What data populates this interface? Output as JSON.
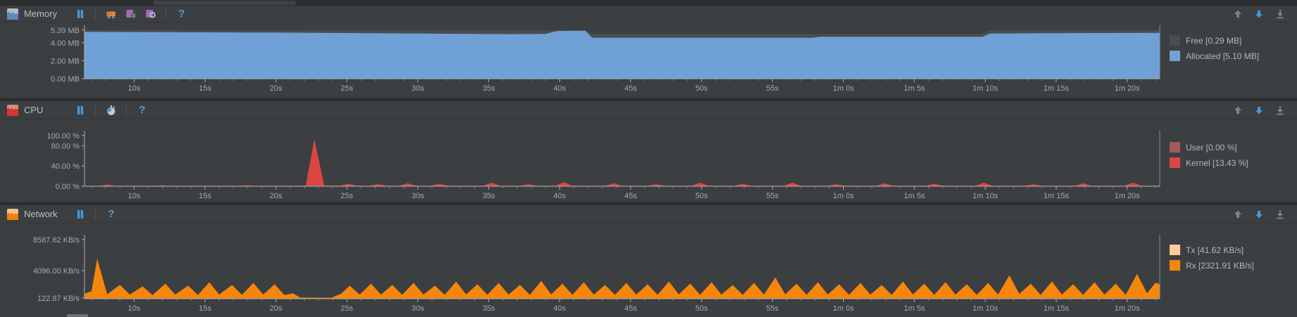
{
  "panels": [
    {
      "title": "Memory",
      "icons": {
        "panel": "memory-chart-icon",
        "toolbar": [
          "pause-icon",
          "gc-icon",
          "heap-dump-icon",
          "allocation-tracker-icon",
          "help-icon"
        ],
        "controls": [
          "move-up-icon",
          "move-down-icon",
          "minimize-icon"
        ]
      },
      "legend": [
        {
          "label": "Free [0.29 MB]",
          "color": "#4A4D4F"
        },
        {
          "label": "Allocated [5.10 MB]",
          "color": "#6FA1D6"
        }
      ]
    },
    {
      "title": "CPU",
      "icons": {
        "panel": "cpu-chart-icon",
        "toolbar": [
          "pause-icon",
          "method-trace-icon",
          "help-icon"
        ],
        "controls": [
          "move-up-icon",
          "move-down-icon",
          "minimize-icon"
        ]
      },
      "legend": [
        {
          "label": "User [0.00 %]",
          "color": "#A05A5A"
        },
        {
          "label": "Kernel [13.43 %]",
          "color": "#DC4642"
        }
      ]
    },
    {
      "title": "Network",
      "icons": {
        "panel": "network-chart-icon",
        "toolbar": [
          "pause-icon",
          "help-icon"
        ],
        "controls": [
          "move-up-icon",
          "move-down-icon",
          "minimize-icon"
        ]
      },
      "legend": [
        {
          "label": "Tx [41.62 KB/s]",
          "color": "#FFCC99"
        },
        {
          "label": "Rx [2321.91 KB/s]",
          "color": "#F6860B"
        }
      ]
    }
  ],
  "time_axis": {
    "unit": "seconds",
    "minor_tick_step": 1,
    "labels": [
      {
        "t": 10,
        "label": "10s"
      },
      {
        "t": 15,
        "label": "15s"
      },
      {
        "t": 20,
        "label": "20s"
      },
      {
        "t": 25,
        "label": "25s"
      },
      {
        "t": 30,
        "label": "30s"
      },
      {
        "t": 35,
        "label": "35s"
      },
      {
        "t": 40,
        "label": "40s"
      },
      {
        "t": 45,
        "label": "45s"
      },
      {
        "t": 50,
        "label": "50s"
      },
      {
        "t": 55,
        "label": "55s"
      },
      {
        "t": 60,
        "label": "1m 0s"
      },
      {
        "t": 65,
        "label": "1m 5s"
      },
      {
        "t": 70,
        "label": "1m 10s"
      },
      {
        "t": 75,
        "label": "1m 15s"
      },
      {
        "t": 80,
        "label": "1m 20s"
      }
    ]
  },
  "chart_data": [
    {
      "type": "area",
      "title": "Memory",
      "y_unit": "MB",
      "x_range": [
        6.5,
        82.3
      ],
      "y_plot_max": 5.62,
      "y_ticks": [
        {
          "v": 5.39,
          "label": "5.39 MB"
        },
        {
          "v": 4.0,
          "label": "4.00 MB"
        },
        {
          "v": 2.0,
          "label": "2.00 MB"
        },
        {
          "v": 0.0,
          "label": "0.00 MB"
        }
      ],
      "series": [
        {
          "name": "total (allocated + free)",
          "color": "#4A4D4F",
          "points": [
            [
              6.5,
              5.39
            ],
            [
              41.8,
              5.39
            ],
            [
              42.3,
              4.97
            ],
            [
              69.8,
              4.97
            ],
            [
              70.3,
              5.39
            ],
            [
              82.3,
              5.39
            ]
          ]
        },
        {
          "name": "allocated",
          "color": "#6FA1D6",
          "points": [
            [
              6.5,
              5.2
            ],
            [
              20,
              5.12
            ],
            [
              30,
              5.02
            ],
            [
              36.5,
              4.95
            ],
            [
              39,
              4.97
            ],
            [
              39.8,
              5.3
            ],
            [
              41.8,
              5.32
            ],
            [
              42.3,
              4.55
            ],
            [
              57.8,
              4.55
            ],
            [
              58.3,
              4.65
            ],
            [
              69.8,
              4.65
            ],
            [
              70.3,
              5.0
            ],
            [
              74,
              5.06
            ],
            [
              82.3,
              5.1
            ]
          ]
        }
      ]
    },
    {
      "type": "area",
      "title": "CPU",
      "y_unit": "%",
      "x_range": [
        6.5,
        82.3
      ],
      "y_plot_max": 104,
      "y_ticks": [
        {
          "v": 100,
          "label": "100.00 %"
        },
        {
          "v": 80,
          "label": "80.00 %"
        },
        {
          "v": 40,
          "label": "40.00 %"
        },
        {
          "v": 0,
          "label": "0.00 %"
        }
      ],
      "series": [
        {
          "name": "user",
          "color": "#A05A5A",
          "points": [
            [
              6.5,
              0
            ],
            [
              82.3,
              0
            ]
          ]
        },
        {
          "name": "kernel",
          "color": "#DC4642",
          "points": [
            [
              6.5,
              1
            ],
            [
              7.6,
              1
            ],
            [
              8.1,
              3.5
            ],
            [
              8.7,
              1
            ],
            [
              11.5,
              1
            ],
            [
              12,
              2
            ],
            [
              12.5,
              1
            ],
            [
              15,
              1
            ],
            [
              17.5,
              1
            ],
            [
              18,
              2
            ],
            [
              18.5,
              1
            ],
            [
              21.5,
              1
            ],
            [
              22.1,
              1.5
            ],
            [
              22.7,
              93
            ],
            [
              23.4,
              1.5
            ],
            [
              24.5,
              1
            ],
            [
              25.1,
              5
            ],
            [
              25.7,
              1
            ],
            [
              26.6,
              1
            ],
            [
              27.2,
              4
            ],
            [
              27.8,
              1
            ],
            [
              28.7,
              1
            ],
            [
              29.3,
              6
            ],
            [
              29.9,
              1
            ],
            [
              30.9,
              1
            ],
            [
              31.5,
              5
            ],
            [
              32.1,
              1
            ],
            [
              34.6,
              1
            ],
            [
              35.2,
              7
            ],
            [
              35.8,
              1
            ],
            [
              37.2,
              1
            ],
            [
              37.8,
              4
            ],
            [
              38.4,
              1
            ],
            [
              39.7,
              1
            ],
            [
              40.3,
              8
            ],
            [
              40.9,
              1
            ],
            [
              43.2,
              1
            ],
            [
              43.8,
              6
            ],
            [
              44.4,
              1
            ],
            [
              46.2,
              1
            ],
            [
              46.8,
              4
            ],
            [
              47.4,
              1
            ],
            [
              49.3,
              1
            ],
            [
              49.9,
              7
            ],
            [
              50.5,
              1
            ],
            [
              52.3,
              1
            ],
            [
              52.9,
              5
            ],
            [
              53.5,
              1
            ],
            [
              55.8,
              1
            ],
            [
              56.4,
              7
            ],
            [
              57,
              1
            ],
            [
              58.9,
              1
            ],
            [
              59.5,
              4
            ],
            [
              60.1,
              1
            ],
            [
              62.3,
              1
            ],
            [
              62.9,
              6
            ],
            [
              63.5,
              1
            ],
            [
              65.8,
              1
            ],
            [
              66.4,
              5
            ],
            [
              67,
              1
            ],
            [
              69.3,
              1
            ],
            [
              69.9,
              7
            ],
            [
              70.5,
              1
            ],
            [
              72.8,
              1
            ],
            [
              73.4,
              4
            ],
            [
              74,
              1
            ],
            [
              76.3,
              1
            ],
            [
              76.9,
              6
            ],
            [
              77.5,
              1
            ],
            [
              79.8,
              1
            ],
            [
              80.4,
              7
            ],
            [
              81,
              1
            ],
            [
              82.3,
              1.2
            ]
          ]
        }
      ]
    },
    {
      "type": "area",
      "title": "Network",
      "y_unit": "KB/s",
      "x_range": [
        6.5,
        82.3
      ],
      "y_plot_max": 8890,
      "y_ticks": [
        {
          "v": 8587.62,
          "label": "8587.62 KB/s"
        },
        {
          "v": 4096.0,
          "label": "4096.00 KB/s"
        },
        {
          "v": 122.87,
          "label": "122.87 KB/s"
        }
      ],
      "series": [
        {
          "name": "tx",
          "color": "#FFCC99",
          "points": [
            [
              6.5,
              60
            ],
            [
              82.3,
              60
            ]
          ]
        },
        {
          "name": "rx",
          "color": "#F6860B",
          "points": [
            [
              6.5,
              700
            ],
            [
              7.0,
              1100
            ],
            [
              7.4,
              5800
            ],
            [
              8.1,
              650
            ],
            [
              9.0,
              2000
            ],
            [
              9.7,
              600
            ],
            [
              10.6,
              1800
            ],
            [
              11.3,
              520
            ],
            [
              12.2,
              2200
            ],
            [
              12.9,
              600
            ],
            [
              13.8,
              1900
            ],
            [
              14.5,
              540
            ],
            [
              15.3,
              2400
            ],
            [
              16.0,
              600
            ],
            [
              16.9,
              2000
            ],
            [
              17.6,
              560
            ],
            [
              18.4,
              2300
            ],
            [
              19.1,
              600
            ],
            [
              19.9,
              2100
            ],
            [
              20.6,
              520
            ],
            [
              21.2,
              800
            ],
            [
              21.7,
              160
            ],
            [
              23.9,
              140
            ],
            [
              24.6,
              750
            ],
            [
              25.2,
              1900
            ],
            [
              25.9,
              580
            ],
            [
              26.7,
              2200
            ],
            [
              27.4,
              600
            ],
            [
              28.2,
              2000
            ],
            [
              28.9,
              560
            ],
            [
              29.7,
              2300
            ],
            [
              30.4,
              600
            ],
            [
              31.2,
              1900
            ],
            [
              31.9,
              560
            ],
            [
              32.7,
              2500
            ],
            [
              33.4,
              620
            ],
            [
              34.2,
              2100
            ],
            [
              34.9,
              560
            ],
            [
              35.7,
              2300
            ],
            [
              36.4,
              600
            ],
            [
              37.2,
              2000
            ],
            [
              37.9,
              560
            ],
            [
              38.7,
              2600
            ],
            [
              39.4,
              620
            ],
            [
              40.2,
              2200
            ],
            [
              40.9,
              560
            ],
            [
              41.7,
              2400
            ],
            [
              42.4,
              600
            ],
            [
              43.2,
              2000
            ],
            [
              43.9,
              560
            ],
            [
              44.7,
              2300
            ],
            [
              45.4,
              600
            ],
            [
              46.2,
              2100
            ],
            [
              46.9,
              560
            ],
            [
              47.7,
              2500
            ],
            [
              48.4,
              620
            ],
            [
              49.2,
              2200
            ],
            [
              49.9,
              560
            ],
            [
              50.7,
              2400
            ],
            [
              51.4,
              600
            ],
            [
              52.2,
              2000
            ],
            [
              52.9,
              560
            ],
            [
              53.7,
              2300
            ],
            [
              54.4,
              600
            ],
            [
              55.2,
              3100
            ],
            [
              55.9,
              650
            ],
            [
              56.7,
              2200
            ],
            [
              57.4,
              560
            ],
            [
              58.2,
              2400
            ],
            [
              58.9,
              600
            ],
            [
              59.7,
              2100
            ],
            [
              60.4,
              560
            ],
            [
              61.2,
              2300
            ],
            [
              61.9,
              600
            ],
            [
              62.7,
              2000
            ],
            [
              63.4,
              560
            ],
            [
              64.2,
              2500
            ],
            [
              64.9,
              620
            ],
            [
              65.7,
              2200
            ],
            [
              66.4,
              560
            ],
            [
              67.2,
              2400
            ],
            [
              67.9,
              600
            ],
            [
              68.7,
              2100
            ],
            [
              69.4,
              560
            ],
            [
              70.2,
              2300
            ],
            [
              70.9,
              600
            ],
            [
              71.7,
              3400
            ],
            [
              72.4,
              700
            ],
            [
              73.2,
              2200
            ],
            [
              73.9,
              560
            ],
            [
              74.7,
              2500
            ],
            [
              75.4,
              620
            ],
            [
              76.2,
              2100
            ],
            [
              76.9,
              560
            ],
            [
              77.7,
              2400
            ],
            [
              78.4,
              600
            ],
            [
              79.2,
              2200
            ],
            [
              79.9,
              560
            ],
            [
              80.7,
              3600
            ],
            [
              81.4,
              800
            ],
            [
              82.0,
              2321
            ],
            [
              82.3,
              2100
            ]
          ]
        }
      ]
    }
  ],
  "colors": {
    "background": "#3C3F41",
    "axis": "#ABAEB0",
    "tick_text": "#A7AAAC",
    "accent_blue": "#4398DB"
  }
}
